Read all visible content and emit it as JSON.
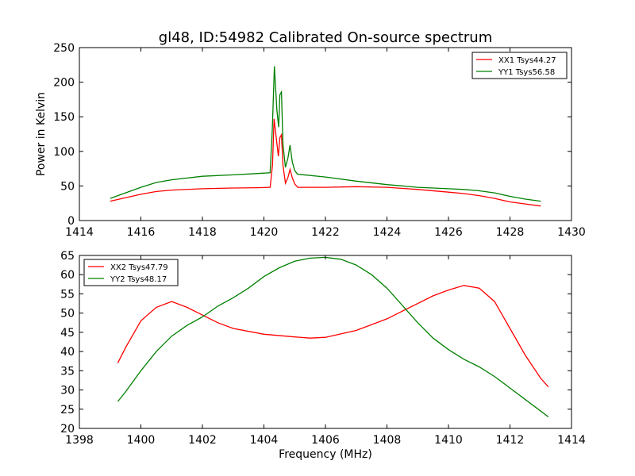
{
  "chart_data": [
    {
      "type": "line",
      "title": "gl48, ID:54982 Calibrated On-source spectrum",
      "xlabel": "",
      "ylabel": "Power in Kelvin",
      "xlim": [
        1414,
        1430
      ],
      "ylim": [
        0,
        250
      ],
      "xticks": [
        1414,
        1416,
        1418,
        1420,
        1422,
        1424,
        1426,
        1428,
        1430
      ],
      "yticks": [
        0,
        50,
        100,
        150,
        200,
        250
      ],
      "grid": false,
      "legend_position": "top-right",
      "series": [
        {
          "name": "XX1 Tsys44.27",
          "color": "#ff0000",
          "x": [
            1415.0,
            1415.5,
            1416.0,
            1416.5,
            1417.0,
            1418.0,
            1419.0,
            1419.8,
            1420.2,
            1420.28,
            1420.33,
            1420.4,
            1420.47,
            1420.52,
            1420.57,
            1420.62,
            1420.7,
            1420.78,
            1420.85,
            1420.92,
            1421.0,
            1421.1,
            1422.0,
            1423.0,
            1424.0,
            1425.0,
            1426.0,
            1426.5,
            1427.0,
            1427.5,
            1428.0,
            1428.5,
            1429.0
          ],
          "y": [
            28,
            33,
            38,
            42,
            44,
            46,
            47,
            47.5,
            48,
            80,
            147,
            120,
            93,
            120,
            124,
            80,
            54,
            62,
            74,
            62,
            53,
            48,
            48,
            49,
            48,
            45,
            41,
            39,
            36,
            32,
            27,
            24,
            21
          ]
        },
        {
          "name": "YY1 Tsys56.58",
          "color": "#008000",
          "x": [
            1415.0,
            1415.5,
            1416.0,
            1416.5,
            1417.0,
            1418.0,
            1419.0,
            1419.8,
            1420.2,
            1420.27,
            1420.34,
            1420.42,
            1420.48,
            1420.52,
            1420.57,
            1420.62,
            1420.7,
            1420.78,
            1420.85,
            1420.92,
            1421.0,
            1421.1,
            1422.0,
            1423.0,
            1424.0,
            1425.0,
            1426.0,
            1426.5,
            1427.0,
            1427.5,
            1428.0,
            1428.5,
            1429.0
          ],
          "y": [
            32,
            40,
            48,
            55,
            59,
            64,
            66,
            68,
            69,
            130,
            223,
            160,
            135,
            182,
            186,
            110,
            77,
            90,
            109,
            85,
            72,
            67,
            63,
            57,
            52,
            48,
            46,
            45,
            43,
            40,
            35,
            31,
            28
          ]
        }
      ]
    },
    {
      "type": "line",
      "title": "",
      "xlabel": "Frequency (MHz)",
      "ylabel": "",
      "xlim": [
        1398,
        1414
      ],
      "ylim": [
        20,
        65
      ],
      "xticks": [
        1398,
        1400,
        1402,
        1404,
        1406,
        1408,
        1410,
        1412,
        1414
      ],
      "yticks": [
        20,
        25,
        30,
        35,
        40,
        45,
        50,
        55,
        60,
        65
      ],
      "grid": false,
      "legend_position": "top-left",
      "series": [
        {
          "name": "XX2 Tsys47.79",
          "color": "#ff0000",
          "x": [
            1399.25,
            1399.5,
            1400.0,
            1400.5,
            1401.0,
            1401.5,
            1402.0,
            1402.5,
            1403.0,
            1404.0,
            1405.0,
            1405.5,
            1406.0,
            1407.0,
            1408.0,
            1408.5,
            1409.0,
            1409.5,
            1410.0,
            1410.5,
            1411.0,
            1411.5,
            1412.0,
            1412.5,
            1413.0,
            1413.25
          ],
          "y": [
            37,
            41,
            48,
            51.5,
            53,
            51.5,
            49.5,
            47.5,
            46,
            44.5,
            43.8,
            43.5,
            43.7,
            45.5,
            48.5,
            50.5,
            52.5,
            54.5,
            56,
            57.2,
            56.5,
            53,
            46,
            39,
            33,
            30.8
          ]
        },
        {
          "name": "YY2 Tsys48.17",
          "color": "#008000",
          "x": [
            1399.25,
            1399.5,
            1400.0,
            1400.5,
            1401.0,
            1401.5,
            1402.0,
            1402.5,
            1403.0,
            1403.5,
            1404.0,
            1404.5,
            1405.0,
            1405.5,
            1406.0,
            1406.5,
            1407.0,
            1407.5,
            1408.0,
            1408.5,
            1409.0,
            1409.5,
            1410.0,
            1410.5,
            1411.0,
            1411.5,
            1412.0,
            1412.5,
            1413.0,
            1413.25
          ],
          "y": [
            27,
            29.5,
            35,
            40,
            44,
            46.8,
            49,
            51.8,
            54,
            56.5,
            59.5,
            61.8,
            63.5,
            64.3,
            64.5,
            64,
            62.5,
            60,
            56.5,
            52,
            47.5,
            43.5,
            40.5,
            38,
            36,
            33.5,
            30.5,
            27.5,
            24.5,
            23
          ]
        }
      ]
    }
  ]
}
